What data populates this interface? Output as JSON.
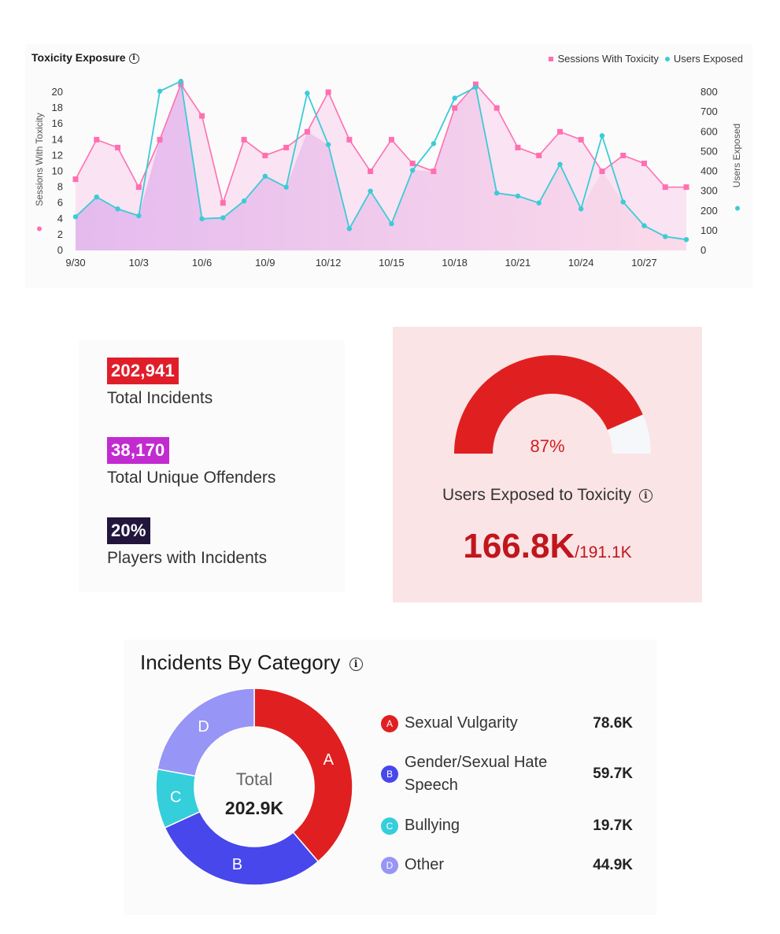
{
  "chart_data": {
    "type": "line",
    "title": "Toxicity Exposure",
    "x": [
      "9/30",
      "10/1",
      "10/2",
      "10/3",
      "10/4",
      "10/5",
      "10/6",
      "10/7",
      "10/8",
      "10/9",
      "10/10",
      "10/11",
      "10/12",
      "10/13",
      "10/14",
      "10/15",
      "10/16",
      "10/17",
      "10/18",
      "10/19",
      "10/20",
      "10/21",
      "10/22",
      "10/23",
      "10/24",
      "10/25",
      "10/26",
      "10/27",
      "10/28",
      "10/29"
    ],
    "x_tick_labels": [
      "9/30",
      "10/3",
      "10/6",
      "10/9",
      "10/12",
      "10/15",
      "10/18",
      "10/21",
      "10/24",
      "10/27"
    ],
    "series": [
      {
        "name": "Sessions With Toxicity",
        "axis": "left",
        "color": "#ff6fb1",
        "values": [
          9,
          14,
          13,
          8,
          14,
          21,
          17,
          6,
          14,
          12,
          13,
          15,
          20,
          14,
          10,
          14,
          11,
          10,
          18,
          21,
          18,
          13,
          12,
          15,
          14,
          10,
          12,
          11,
          8,
          8
        ]
      },
      {
        "name": "Users Exposed",
        "axis": "right",
        "color": "#3ccbd6",
        "values": [
          170,
          270,
          210,
          175,
          805,
          855,
          160,
          165,
          250,
          375,
          320,
          795,
          535,
          110,
          300,
          135,
          405,
          540,
          770,
          825,
          290,
          275,
          240,
          435,
          210,
          580,
          245,
          125,
          70,
          55
        ]
      }
    ],
    "ylabel": "Sessions With Toxicity",
    "y2label": "Users Exposed",
    "ylim": [
      0,
      21
    ],
    "y_ticks": [
      0,
      2,
      4,
      6,
      8,
      10,
      12,
      14,
      16,
      18,
      20
    ],
    "y2lim": [
      0,
      840
    ],
    "y2_ticks": [
      0,
      100,
      200,
      300,
      400,
      500,
      600,
      700,
      800
    ],
    "legend": "top-right"
  },
  "stats": [
    {
      "value": "202,941",
      "label": "Total Incidents",
      "color": "#e01e2a"
    },
    {
      "value": "38,170",
      "label": "Total Unique Offenders",
      "color": "#c22bd0"
    },
    {
      "value": "20%",
      "label": "Players with Incidents",
      "color": "#22163d"
    }
  ],
  "gauge": {
    "fraction": 0.87,
    "percent_label": "87%",
    "label": "Users Exposed to Toxicity",
    "value": "166.8K",
    "total": "/191.1K",
    "fill_color": "#e02020",
    "track_color": "#f6f7fb"
  },
  "categories": {
    "title": "Incidents By Category",
    "center_label": "Total",
    "center_value": "202.9K",
    "items": [
      {
        "letter": "A",
        "name": "Sexual Vulgarity",
        "value": "78.6K",
        "amount": 78.6,
        "color": "#e02020"
      },
      {
        "letter": "B",
        "name": "Gender/Sexual Hate Speech",
        "value": "59.7K",
        "amount": 59.7,
        "color": "#4747ec"
      },
      {
        "letter": "C",
        "name": "Bullying",
        "value": "19.7K",
        "amount": 19.7,
        "color": "#35cedb"
      },
      {
        "letter": "D",
        "name": "Other",
        "value": "44.9K",
        "amount": 44.9,
        "color": "#9795f5"
      }
    ]
  },
  "icons": {
    "info": "info-icon"
  }
}
